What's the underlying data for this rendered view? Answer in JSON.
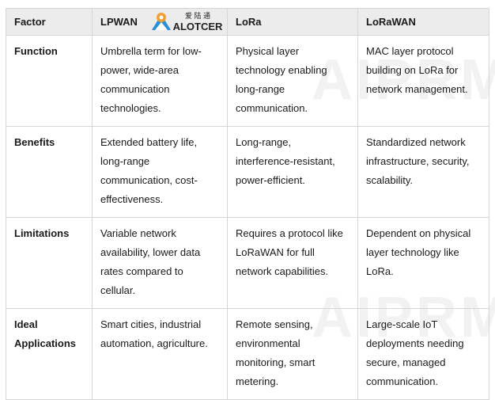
{
  "columns": [
    "Factor",
    "LPWAN",
    "LoRa",
    "LoRaWAN"
  ],
  "rows": [
    {
      "factor": "Function",
      "lpwan": "Umbrella term for low-power, wide-area communication technologies.",
      "lora": "Physical layer technology enabling long-range communication.",
      "lorawan": "MAC layer protocol building on LoRa for network management."
    },
    {
      "factor": "Benefits",
      "lpwan": "Extended battery life, long-range communication, cost-effectiveness.",
      "lora": "Long-range, interference-resistant, power-efficient.",
      "lorawan": "Standardized network infrastructure, security, scalability."
    },
    {
      "factor": "Limitations",
      "lpwan": "Variable network availability, lower data rates compared to cellular.",
      "lora": "Requires a protocol like LoRaWAN for full network capabilities.",
      "lorawan": "Dependent on physical layer technology like LoRa."
    },
    {
      "factor": "Ideal Applications",
      "lpwan": "Smart cities, industrial automation, agriculture.",
      "lora": "Remote sensing, environmental monitoring, smart metering.",
      "lorawan": "Large-scale IoT deployments needing secure, managed communication."
    }
  ],
  "logo": {
    "cn": "爱陆通",
    "en": "ALOTCER"
  },
  "watermark": "AIPRM"
}
